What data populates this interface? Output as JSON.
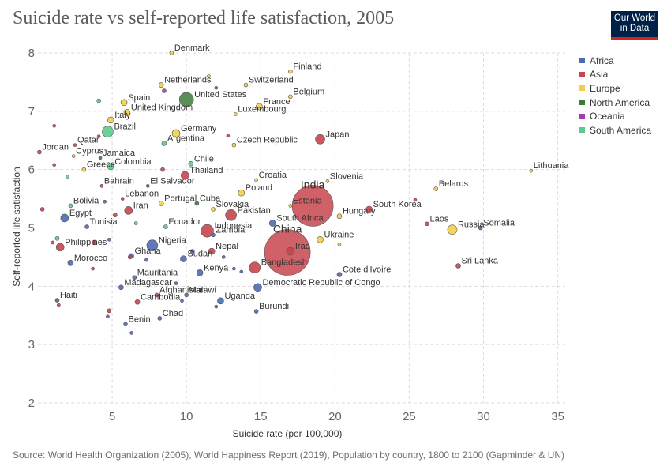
{
  "title": "Suicide rate vs self-reported life satisfaction, 2005",
  "logo": {
    "line1": "Our World",
    "line2": "in Data"
  },
  "source": "Source: World Health Organization (2005), World Happiness Report (2019), Population by country, 1800 to 2100 (Gapminder & UN)",
  "legend": [
    {
      "label": "Africa",
      "color": "#4c6bb3"
    },
    {
      "label": "Asia",
      "color": "#c8454e"
    },
    {
      "label": "Europe",
      "color": "#f2cf4a"
    },
    {
      "label": "North America",
      "color": "#3d7b3d"
    },
    {
      "label": "Oceania",
      "color": "#a33cb1"
    },
    {
      "label": "South America",
      "color": "#5fca8e"
    }
  ],
  "chart_data": {
    "type": "scatter",
    "title": "Suicide rate vs self-reported life satisfaction, 2005",
    "xlabel": "Suicide rate (per 100,000)",
    "ylabel": "Self-reported life satisfaction",
    "xlim": [
      0,
      35.5
    ],
    "ylim": [
      2,
      8
    ],
    "xticks": [
      "5",
      "10",
      "15",
      "20",
      "25",
      "30",
      "35"
    ],
    "yticks": [
      "2",
      "3",
      "4",
      "5",
      "6",
      "7",
      "8"
    ],
    "grid": true,
    "legend_position": "right",
    "points": [
      {
        "label": "Denmark",
        "x": 9.0,
        "y": 8.0,
        "r": 2.5,
        "region": "Europe"
      },
      {
        "label": "Finland",
        "x": 17.0,
        "y": 7.68,
        "r": 2.5,
        "region": "Europe"
      },
      {
        "label": "Netherlands",
        "x": 8.3,
        "y": 7.45,
        "r": 3,
        "region": "Europe"
      },
      {
        "label": "Switzerland",
        "x": 14.0,
        "y": 7.45,
        "r": 2.5,
        "region": "Europe"
      },
      {
        "label": "United States",
        "x": 10.0,
        "y": 7.2,
        "r": 9,
        "region": "North America"
      },
      {
        "label": "Belgium",
        "x": 17.0,
        "y": 7.25,
        "r": 2.5,
        "region": "Europe"
      },
      {
        "label": "Spain",
        "x": 5.8,
        "y": 7.15,
        "r": 4,
        "region": "Europe"
      },
      {
        "label": "France",
        "x": 14.9,
        "y": 7.08,
        "r": 4,
        "region": "Europe"
      },
      {
        "label": "United Kingdom",
        "x": 6.0,
        "y": 6.98,
        "r": 4,
        "region": "Europe"
      },
      {
        "label": "Luxembourg",
        "x": 13.3,
        "y": 6.95,
        "r": 2,
        "region": "Europe"
      },
      {
        "label": "Italy",
        "x": 4.9,
        "y": 6.85,
        "r": 4,
        "region": "Europe"
      },
      {
        "label": "Brazil",
        "x": 4.7,
        "y": 6.65,
        "r": 7,
        "region": "South America"
      },
      {
        "label": "Germany",
        "x": 9.3,
        "y": 6.62,
        "r": 5,
        "region": "Europe"
      },
      {
        "label": "Japan",
        "x": 19.0,
        "y": 6.52,
        "r": 6,
        "region": "Asia"
      },
      {
        "label": "Czech Republic",
        "x": 13.2,
        "y": 6.42,
        "r": 2.5,
        "region": "Europe"
      },
      {
        "label": "Argentina",
        "x": 8.5,
        "y": 6.45,
        "r": 3,
        "region": "South America"
      },
      {
        "label": "Jordan",
        "x": 0.1,
        "y": 6.3,
        "r": 2.5,
        "region": "Asia"
      },
      {
        "label": "Qatar",
        "x": 2.5,
        "y": 6.42,
        "r": 2,
        "region": "Asia"
      },
      {
        "label": "Cyprus",
        "x": 2.4,
        "y": 6.23,
        "r": 2,
        "region": "Europe"
      },
      {
        "label": "Jamaica",
        "x": 4.2,
        "y": 6.2,
        "r": 2,
        "region": "North America"
      },
      {
        "label": "Greece",
        "x": 3.1,
        "y": 6.0,
        "r": 2.5,
        "region": "Europe"
      },
      {
        "label": "Colombia",
        "x": 4.9,
        "y": 6.05,
        "r": 4,
        "region": "South America"
      },
      {
        "label": "Chile",
        "x": 10.3,
        "y": 6.1,
        "r": 3,
        "region": "South America"
      },
      {
        "label": "Thailand",
        "x": 9.9,
        "y": 5.9,
        "r": 5,
        "region": "Asia"
      },
      {
        "label": "Lithuania",
        "x": 33.2,
        "y": 5.98,
        "r": 2,
        "region": "Europe"
      },
      {
        "label": "Croatia",
        "x": 14.7,
        "y": 5.82,
        "r": 2,
        "region": "Europe"
      },
      {
        "label": "Slovenia",
        "x": 19.5,
        "y": 5.8,
        "r": 2,
        "region": "Europe"
      },
      {
        "label": "Bahrain",
        "x": 4.3,
        "y": 5.72,
        "r": 2,
        "region": "Asia"
      },
      {
        "label": "El Salvador",
        "x": 7.4,
        "y": 5.72,
        "r": 2,
        "region": "North America"
      },
      {
        "label": "Belarus",
        "x": 26.8,
        "y": 5.67,
        "r": 2.5,
        "region": "Europe"
      },
      {
        "label": "Poland",
        "x": 13.7,
        "y": 5.6,
        "r": 4,
        "region": "Europe"
      },
      {
        "label": "India",
        "x": 18.5,
        "y": 5.38,
        "r": 26,
        "region": "Asia"
      },
      {
        "label": "Bolivia",
        "x": 2.2,
        "y": 5.38,
        "r": 2.5,
        "region": "South America"
      },
      {
        "label": "Lebanon",
        "x": 5.7,
        "y": 5.5,
        "r": 2,
        "region": "Asia"
      },
      {
        "label": "Portugal",
        "x": 8.3,
        "y": 5.42,
        "r": 3,
        "region": "Europe"
      },
      {
        "label": "Cuba",
        "x": 10.7,
        "y": 5.42,
        "r": 2.5,
        "region": "North America"
      },
      {
        "label": "Slovakia",
        "x": 11.8,
        "y": 5.32,
        "r": 2.5,
        "region": "Europe"
      },
      {
        "label": "Pakistan",
        "x": 13.0,
        "y": 5.22,
        "r": 7,
        "region": "Asia"
      },
      {
        "label": "Estonia",
        "x": 17.0,
        "y": 5.38,
        "r": 2,
        "region": "Europe"
      },
      {
        "label": "South Korea",
        "x": 22.3,
        "y": 5.32,
        "r": 4,
        "region": "Asia"
      },
      {
        "label": "Hungary",
        "x": 20.3,
        "y": 5.2,
        "r": 3,
        "region": "Europe"
      },
      {
        "label": "Egypt",
        "x": 1.8,
        "y": 5.17,
        "r": 5,
        "region": "Africa"
      },
      {
        "label": "Iran",
        "x": 6.1,
        "y": 5.3,
        "r": 5,
        "region": "Asia"
      },
      {
        "label": "Indonesia",
        "x": 11.4,
        "y": 4.95,
        "r": 8,
        "region": "Asia"
      },
      {
        "label": "South Africa",
        "x": 15.8,
        "y": 5.08,
        "r": 4,
        "region": "Africa"
      },
      {
        "label": "Laos",
        "x": 26.2,
        "y": 5.07,
        "r": 2.5,
        "region": "Asia"
      },
      {
        "label": "Russia",
        "x": 27.9,
        "y": 4.97,
        "r": 6,
        "region": "Europe"
      },
      {
        "label": "Somalia",
        "x": 29.8,
        "y": 5.0,
        "r": 2.5,
        "region": "Africa"
      },
      {
        "label": "Tunisia",
        "x": 3.3,
        "y": 5.02,
        "r": 2.5,
        "region": "Africa"
      },
      {
        "label": "Ecuador",
        "x": 8.6,
        "y": 5.02,
        "r": 2.5,
        "region": "South America"
      },
      {
        "label": "Zambia",
        "x": 11.8,
        "y": 4.88,
        "r": 2.5,
        "region": "Africa"
      },
      {
        "label": "Ukraine",
        "x": 19.0,
        "y": 4.8,
        "r": 4,
        "region": "Europe"
      },
      {
        "label": "China",
        "x": 16.8,
        "y": 4.58,
        "r": 29,
        "region": "Asia"
      },
      {
        "label": "Philippines",
        "x": 1.5,
        "y": 4.67,
        "r": 5,
        "region": "Asia"
      },
      {
        "label": "Nigeria",
        "x": 7.7,
        "y": 4.7,
        "r": 7,
        "region": "Africa"
      },
      {
        "label": "Nepal",
        "x": 11.7,
        "y": 4.6,
        "r": 4,
        "region": "Asia"
      },
      {
        "label": "Iraq",
        "x": 17.0,
        "y": 4.6,
        "r": 5,
        "region": "Asia"
      },
      {
        "label": "Ghana",
        "x": 6.3,
        "y": 4.52,
        "r": 3,
        "region": "Africa"
      },
      {
        "label": "Sudan",
        "x": 9.8,
        "y": 4.47,
        "r": 4,
        "region": "Africa"
      },
      {
        "label": "Morocco",
        "x": 2.2,
        "y": 4.4,
        "r": 3.5,
        "region": "Africa"
      },
      {
        "label": "Bangladesh",
        "x": 14.6,
        "y": 4.32,
        "r": 7,
        "region": "Asia"
      },
      {
        "label": "Sri Lanka",
        "x": 28.3,
        "y": 4.35,
        "r": 3,
        "region": "Asia"
      },
      {
        "label": "Kenya",
        "x": 10.9,
        "y": 4.23,
        "r": 4,
        "region": "Africa"
      },
      {
        "label": "Cote d'Ivoire",
        "x": 20.3,
        "y": 4.2,
        "r": 3,
        "region": "Africa"
      },
      {
        "label": "Mauritania",
        "x": 6.5,
        "y": 4.15,
        "r": 2.5,
        "region": "Africa"
      },
      {
        "label": "Madagascar",
        "x": 5.6,
        "y": 3.98,
        "r": 3,
        "region": "Africa"
      },
      {
        "label": "Democratic Republic of Congo",
        "x": 14.8,
        "y": 3.98,
        "r": 5,
        "region": "Africa"
      },
      {
        "label": "Malawi",
        "x": 10.0,
        "y": 3.85,
        "r": 2.5,
        "region": "Africa"
      },
      {
        "label": "Haiti",
        "x": 1.3,
        "y": 3.76,
        "r": 2.5,
        "region": "North America"
      },
      {
        "label": "Afghanistan",
        "x": 8.0,
        "y": 3.85,
        "r": 2.5,
        "region": "Asia"
      },
      {
        "label": "Uganda",
        "x": 12.3,
        "y": 3.75,
        "r": 4,
        "region": "Africa"
      },
      {
        "label": "Cambodia",
        "x": 6.7,
        "y": 3.73,
        "r": 3,
        "region": "Asia"
      },
      {
        "label": "Burundi",
        "x": 14.7,
        "y": 3.57,
        "r": 2.5,
        "region": "Africa"
      },
      {
        "label": "Chad",
        "x": 8.2,
        "y": 3.45,
        "r": 2.5,
        "region": "Africa"
      },
      {
        "label": "Benin",
        "x": 5.9,
        "y": 3.35,
        "r": 2.5,
        "region": "Africa"
      }
    ],
    "unlabeled_points": [
      {
        "x": 4.1,
        "y": 7.18,
        "r": 2.5,
        "region": "South America"
      },
      {
        "x": 8.5,
        "y": 7.35,
        "r": 2.5,
        "region": "Oceania"
      },
      {
        "x": 11.5,
        "y": 7.6,
        "r": 2,
        "region": "Europe"
      },
      {
        "x": 12.0,
        "y": 7.4,
        "r": 2,
        "region": "Oceania"
      },
      {
        "x": 1.1,
        "y": 6.75,
        "r": 2,
        "region": "Asia"
      },
      {
        "x": 4.1,
        "y": 6.57,
        "r": 2,
        "region": "Asia"
      },
      {
        "x": 12.8,
        "y": 6.58,
        "r": 2,
        "region": "Asia"
      },
      {
        "x": 1.1,
        "y": 6.08,
        "r": 2,
        "region": "Asia"
      },
      {
        "x": 2.0,
        "y": 5.88,
        "r": 2,
        "region": "South America"
      },
      {
        "x": 8.4,
        "y": 6.0,
        "r": 2.5,
        "region": "Asia"
      },
      {
        "x": 0.3,
        "y": 5.32,
        "r": 2.5,
        "region": "Asia"
      },
      {
        "x": 5.2,
        "y": 5.22,
        "r": 2.5,
        "region": "Asia"
      },
      {
        "x": 4.5,
        "y": 5.45,
        "r": 2,
        "region": "Africa"
      },
      {
        "x": 6.6,
        "y": 5.08,
        "r": 2,
        "region": "South America"
      },
      {
        "x": 1.0,
        "y": 4.75,
        "r": 2,
        "region": "Asia"
      },
      {
        "x": 1.3,
        "y": 4.82,
        "r": 2.5,
        "region": "South America"
      },
      {
        "x": 3.8,
        "y": 4.75,
        "r": 3,
        "region": "Asia"
      },
      {
        "x": 4.8,
        "y": 4.8,
        "r": 2,
        "region": "Africa"
      },
      {
        "x": 3.7,
        "y": 4.3,
        "r": 2,
        "region": "Asia"
      },
      {
        "x": 6.2,
        "y": 4.5,
        "r": 2.5,
        "region": "Asia"
      },
      {
        "x": 7.3,
        "y": 4.45,
        "r": 2,
        "region": "Africa"
      },
      {
        "x": 10.4,
        "y": 4.6,
        "r": 2.5,
        "region": "Africa"
      },
      {
        "x": 12.5,
        "y": 4.5,
        "r": 2,
        "region": "Africa"
      },
      {
        "x": 13.2,
        "y": 4.3,
        "r": 2,
        "region": "Africa"
      },
      {
        "x": 13.7,
        "y": 4.25,
        "r": 2,
        "region": "Africa"
      },
      {
        "x": 9.3,
        "y": 4.05,
        "r": 2,
        "region": "Africa"
      },
      {
        "x": 9.7,
        "y": 3.75,
        "r": 2,
        "region": "Africa"
      },
      {
        "x": 12.0,
        "y": 3.65,
        "r": 2,
        "region": "Africa"
      },
      {
        "x": 1.4,
        "y": 3.68,
        "r": 2,
        "region": "Asia"
      },
      {
        "x": 4.8,
        "y": 3.58,
        "r": 2.5,
        "region": "Asia"
      },
      {
        "x": 4.7,
        "y": 3.48,
        "r": 2,
        "region": "Oceania"
      },
      {
        "x": 6.3,
        "y": 3.2,
        "r": 2,
        "region": "Africa"
      },
      {
        "x": 20.3,
        "y": 4.72,
        "r": 2,
        "region": "Europe"
      },
      {
        "x": 25.4,
        "y": 5.48,
        "r": 2,
        "region": "Asia"
      }
    ]
  }
}
